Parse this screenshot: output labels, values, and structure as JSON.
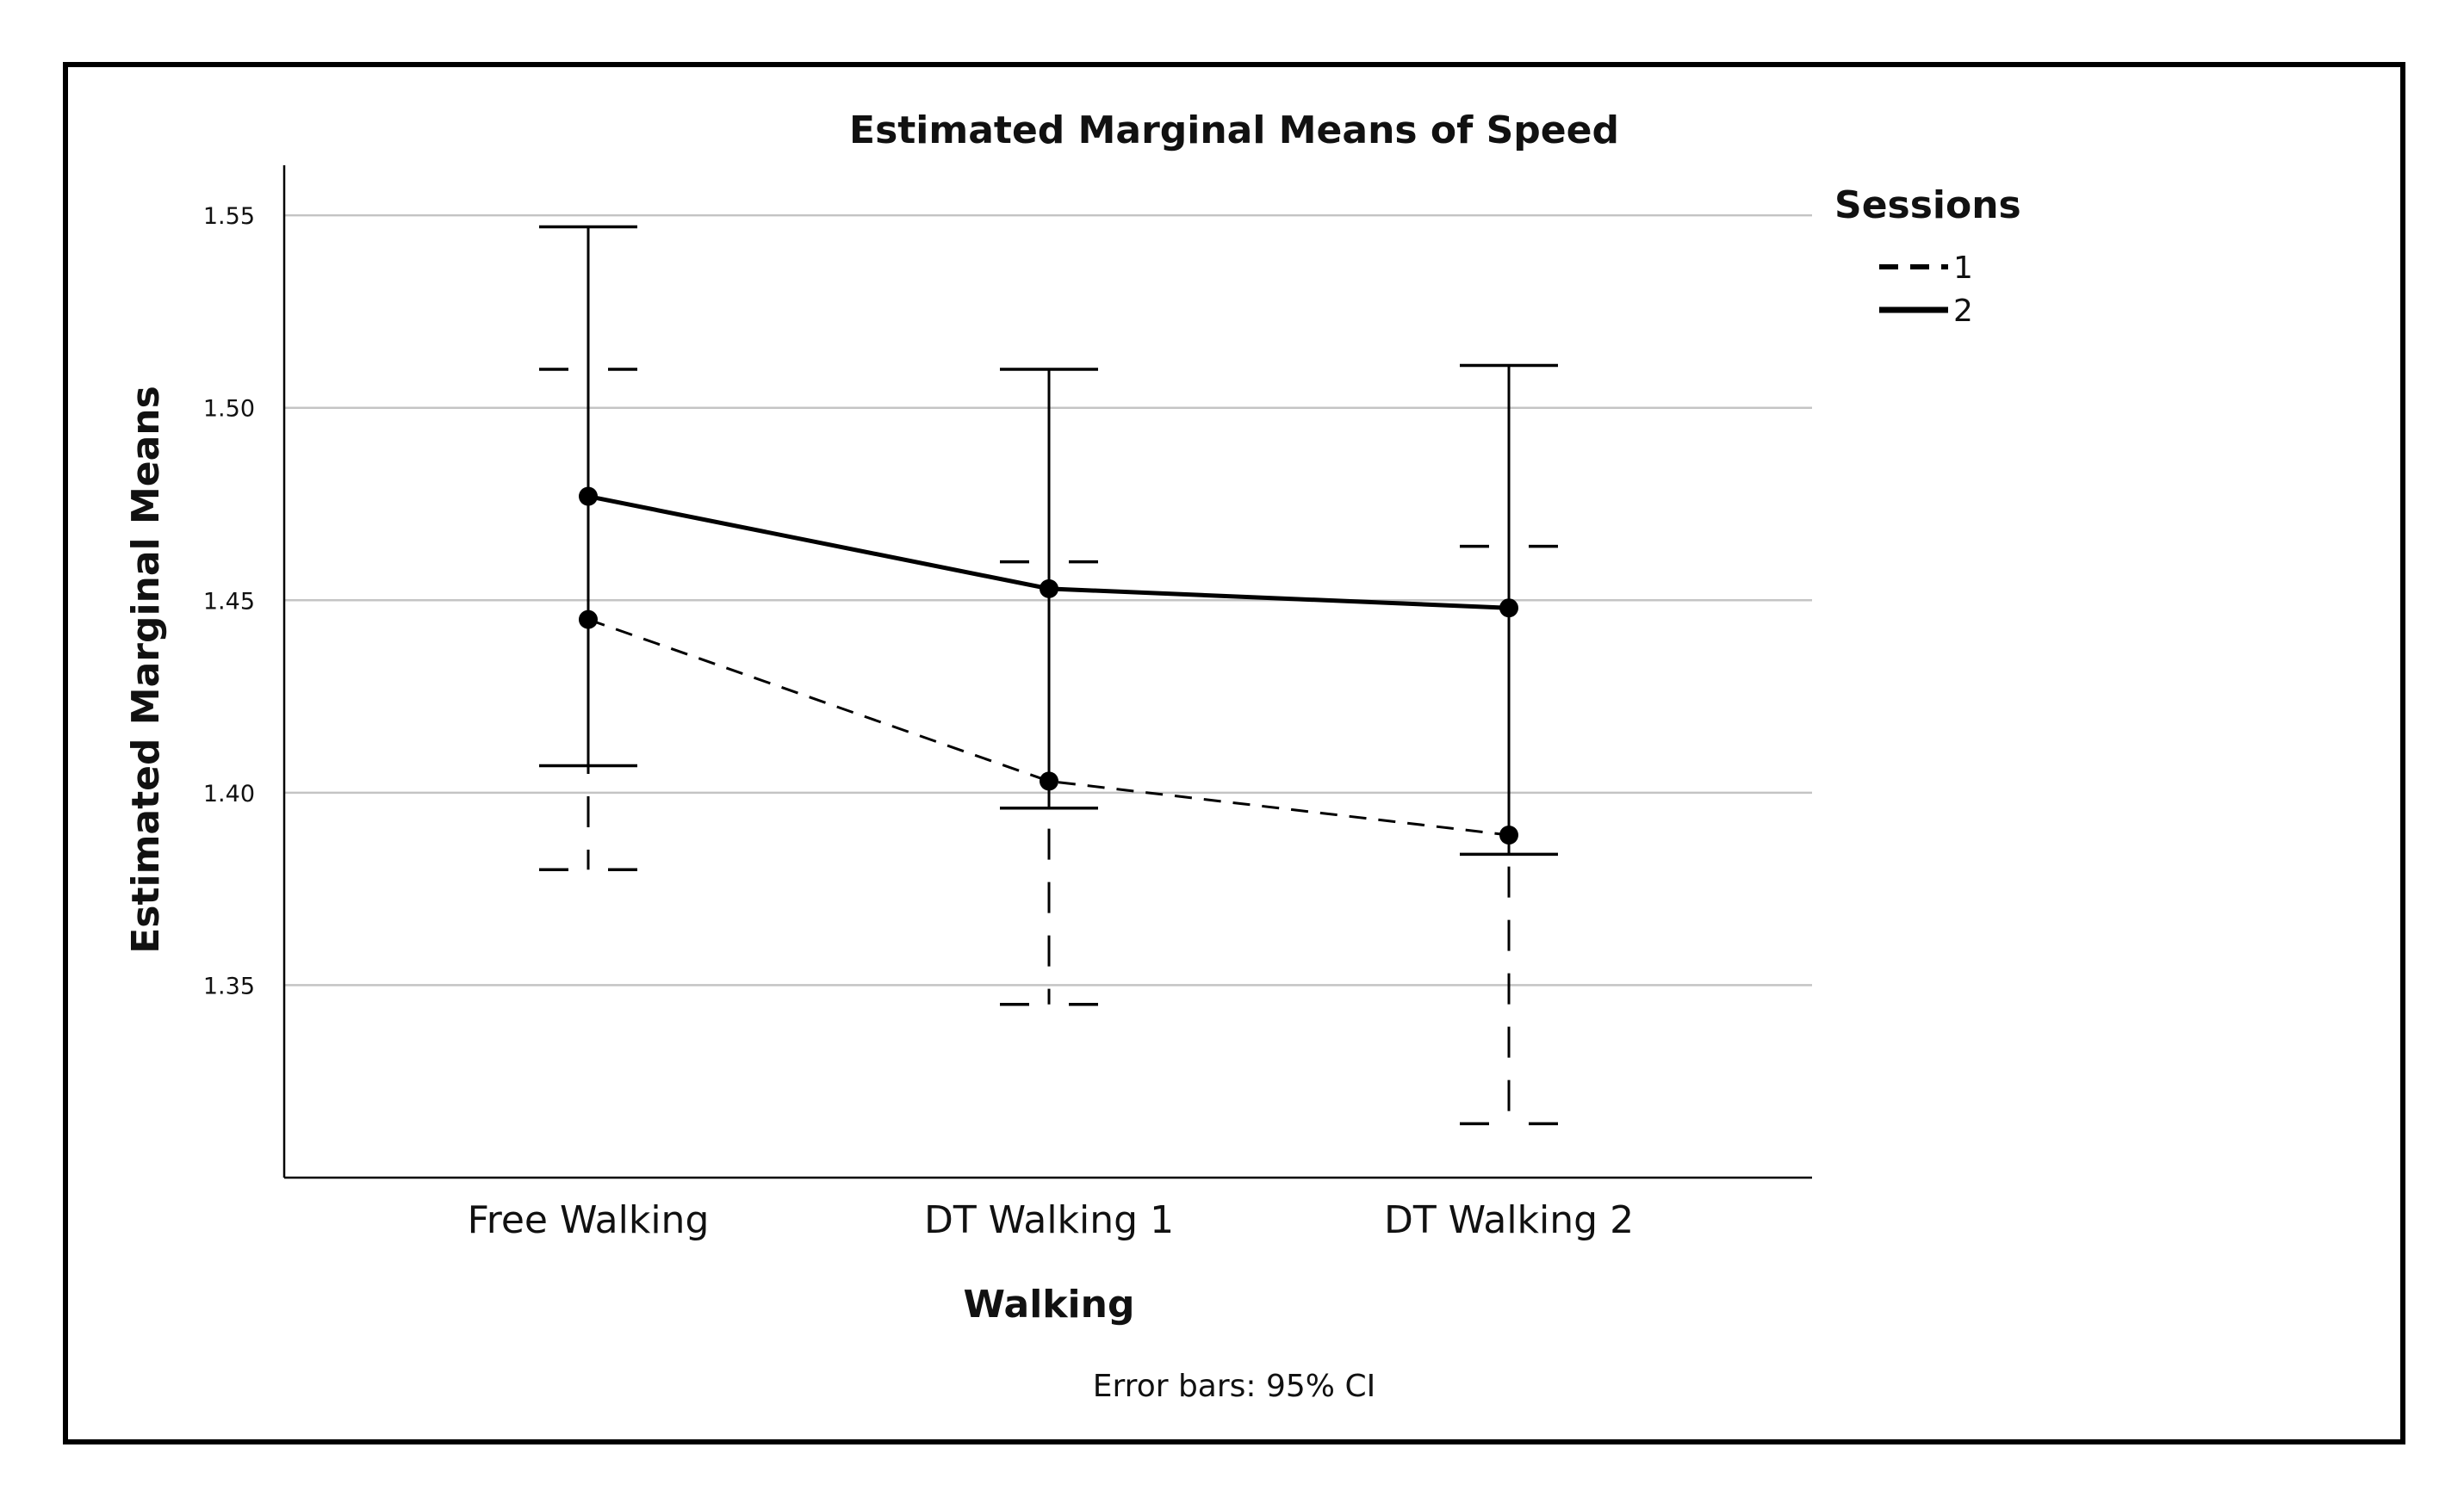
{
  "chart_data": {
    "type": "line",
    "title": "Estimated Marginal Means of Speed",
    "xlabel": "Walking",
    "ylabel": "Estimated Marginal Means",
    "categories": [
      "Free Walking",
      "DT Walking 1",
      "DT Walking 2"
    ],
    "ylim": [
      1.3,
      1.563
    ],
    "yticks": [
      1.35,
      1.4,
      1.45,
      1.5,
      1.55
    ],
    "ytick_labels": [
      "1.35",
      "1.40",
      "1.45",
      "1.50",
      "1.55"
    ],
    "grid": true,
    "legend": {
      "title": "Sessions",
      "position": "top-right"
    },
    "series": [
      {
        "name": "1",
        "style": "dashed",
        "values": [
          1.445,
          1.403,
          1.389
        ],
        "ci_low": [
          1.38,
          1.345,
          1.314
        ],
        "ci_high": [
          1.51,
          1.46,
          1.464
        ]
      },
      {
        "name": "2",
        "style": "solid",
        "values": [
          1.477,
          1.453,
          1.448
        ],
        "ci_low": [
          1.407,
          1.396,
          1.384
        ],
        "ci_high": [
          1.547,
          1.51,
          1.511
        ]
      }
    ],
    "footnote": "Error bars: 95% CI"
  }
}
